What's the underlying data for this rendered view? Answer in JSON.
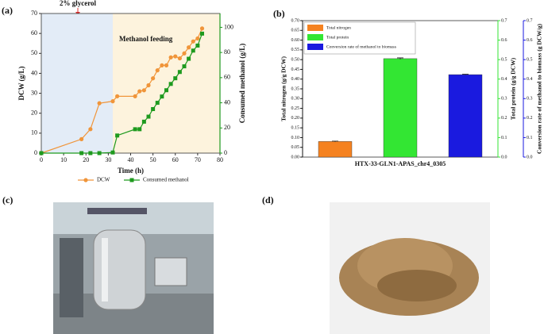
{
  "chart_data": [
    {
      "type": "line",
      "panel_label": "(a)",
      "xlabel": "Time (h)",
      "ylabel": "DCW (g/L)",
      "y2label": "Consumed methanol (g/L)",
      "annotations": [
        "2% glycerol",
        "Methanol feeding"
      ],
      "spans": [
        {
          "xlim": [
            0,
            32
          ],
          "color": "#e3ecf7"
        },
        {
          "xlim": [
            32,
            80
          ],
          "color": "#fdf3dd"
        }
      ],
      "x": [
        0,
        18,
        22,
        26,
        32,
        34,
        42,
        44,
        46,
        48,
        50,
        52,
        54,
        56,
        58,
        60,
        62,
        64,
        66,
        68,
        70,
        72
      ],
      "series": [
        {
          "name": "DCW",
          "color": "#f0953a",
          "marker": "circle",
          "values": [
            0,
            7,
            12,
            25,
            26,
            28.5,
            28.5,
            31,
            31.5,
            34,
            37.5,
            41.5,
            44,
            44,
            48,
            48.5,
            47.5,
            50,
            53,
            56,
            57.5,
            62.5
          ]
        },
        {
          "name": "Consumed methanol",
          "color": "#1e9a1e",
          "marker": "square",
          "axis": "y2",
          "values": [
            0,
            0,
            0,
            0,
            0.5,
            14,
            19,
            19,
            25,
            29,
            35,
            40,
            45,
            50,
            55,
            59.5,
            64.5,
            69,
            75,
            81.5,
            85.5,
            95
          ]
        }
      ],
      "xlim": [
        0,
        80
      ],
      "xticks": [
        0,
        10,
        20,
        30,
        40,
        50,
        60,
        70,
        80
      ],
      "ylim": [
        0,
        70
      ],
      "yticks": [
        0,
        10,
        20,
        30,
        40,
        50,
        60,
        70
      ],
      "y2lim": [
        0,
        111
      ],
      "y2ticks": [
        0,
        20,
        40,
        60,
        80,
        100
      ]
    },
    {
      "type": "bar",
      "panel_label": "(b)",
      "categories": [
        "HTX-33-GLN1-APAS_chr4_0305"
      ],
      "ylabel": "Total nitrogen (g/g DCW)",
      "y2label": "Total protein (g/g DCW)",
      "y3label": "Conversion rate of methanol to biomass (g DCW/g)",
      "series": [
        {
          "name": "Total nitrogen",
          "color": "#f58220",
          "axis": "y",
          "values": [
            0.08
          ],
          "errors": [
            0.002
          ]
        },
        {
          "name": "Total protein",
          "color": "#33e633",
          "axis": "y2",
          "values": [
            0.505
          ],
          "errors": [
            0.004
          ]
        },
        {
          "name": "Conversion rate of methanol to biomass",
          "color": "#1a1adf",
          "axis": "y3",
          "values": [
            0.423
          ],
          "errors": [
            0.002
          ]
        }
      ],
      "ylim": [
        0,
        0.7
      ],
      "yticks": [
        {
          "value": 0,
          "label": "0.00"
        },
        {
          "value": 0.05,
          "label": "0.05"
        },
        {
          "value": 0.1,
          "label": "0.10"
        },
        {
          "value": 0.15,
          "label": "0.15"
        },
        {
          "value": 0.2,
          "label": "0.20"
        },
        {
          "value": 0.25,
          "label": "0.25"
        },
        {
          "value": 0.3,
          "label": "0.30"
        },
        {
          "value": 0.35,
          "label": "0.35"
        },
        {
          "value": 0.4,
          "label": "0.40"
        },
        {
          "value": 0.45,
          "label": "0.45"
        },
        {
          "value": 0.5,
          "label": "0.50"
        },
        {
          "value": 0.55,
          "label": "0.55"
        },
        {
          "value": 0.6,
          "label": "0.60"
        },
        {
          "value": 0.65,
          "label": "0.65"
        },
        {
          "value": 0.7,
          "label": "0.70"
        }
      ],
      "y2lim": [
        0,
        0.7
      ],
      "y2ticks": [
        {
          "value": 0,
          "label": "0.0"
        },
        0.1,
        0.2,
        0.3,
        0.4,
        0.5,
        0.6,
        0.7
      ],
      "y3lim": [
        0,
        0.7
      ],
      "y3ticks": [
        {
          "value": 0,
          "label": "0.0"
        },
        0.1,
        0.2,
        0.3,
        0.4,
        0.5,
        0.6,
        0.7
      ]
    }
  ],
  "photo_labels": [
    "(c)",
    "(d)"
  ]
}
